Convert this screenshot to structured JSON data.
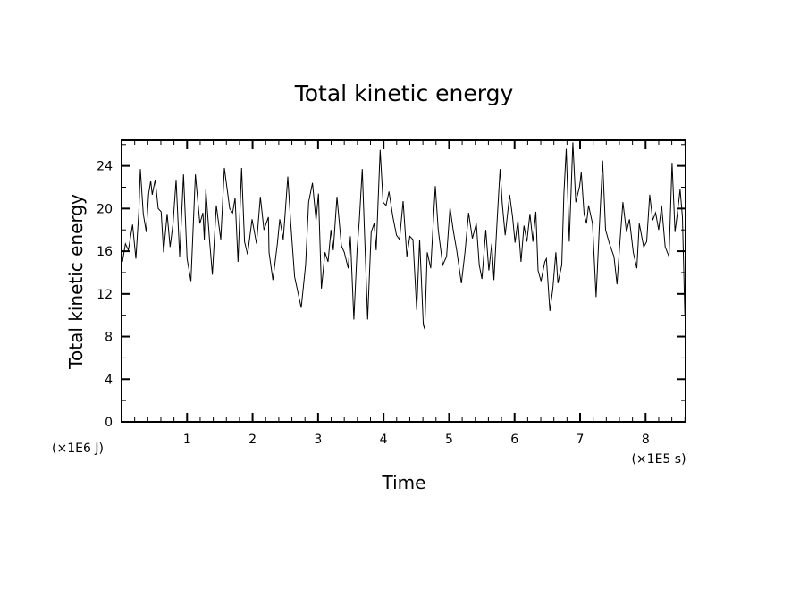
{
  "chart_data": {
    "type": "line",
    "title": "Total kinetic energy",
    "xlabel": "Time",
    "ylabel": "Total kinetic energy",
    "x_unit_label": "(×1E5 s)",
    "y_unit_label": "(×1E6 J)",
    "xlim": [
      0,
      8.61
    ],
    "ylim": [
      0,
      26.4
    ],
    "xticks": [
      1,
      2,
      3,
      4,
      5,
      6,
      7,
      8
    ],
    "xtick_labels": [
      "1",
      "2",
      "3",
      "4",
      "5",
      "6",
      "7",
      "8"
    ],
    "x_minor_step": 0.2,
    "yticks": [
      0,
      4,
      8,
      12,
      16,
      20,
      24
    ],
    "ytick_labels": [
      "0",
      "4",
      "8",
      "12",
      "16",
      "20",
      "24"
    ],
    "y_minor_step": 2,
    "grid": false,
    "legend": "none",
    "color": "#000000",
    "series": [
      {
        "name": "Total kinetic energy",
        "x": [
          0.014,
          0.059,
          0.104,
          0.168,
          0.218,
          0.263,
          0.287,
          0.332,
          0.377,
          0.413,
          0.445,
          0.468,
          0.513,
          0.559,
          0.604,
          0.641,
          0.696,
          0.741,
          0.786,
          0.832,
          0.887,
          0.945,
          1.0,
          1.059,
          1.127,
          1.195,
          1.242,
          1.263,
          1.287,
          1.341,
          1.386,
          1.446,
          1.514,
          1.569,
          1.651,
          1.696,
          1.733,
          1.778,
          1.832,
          1.877,
          1.924,
          1.992,
          2.06,
          2.119,
          2.173,
          2.242,
          2.251,
          2.31,
          2.378,
          2.415,
          2.469,
          2.538,
          2.583,
          2.641,
          2.742,
          2.81,
          2.856,
          2.914,
          2.969,
          3.006,
          3.051,
          3.105,
          3.152,
          3.197,
          3.233,
          3.288,
          3.356,
          3.401,
          3.46,
          3.493,
          3.547,
          3.596,
          3.629,
          3.674,
          3.719,
          3.756,
          3.811,
          3.856,
          3.888,
          3.947,
          3.992,
          4.038,
          4.083,
          4.142,
          4.197,
          4.243,
          4.298,
          4.356,
          4.401,
          4.448,
          4.506,
          4.551,
          4.606,
          4.629,
          4.666,
          4.72,
          4.789,
          4.834,
          4.902,
          4.961,
          5.015,
          5.062,
          5.116,
          5.188,
          5.243,
          5.298,
          5.356,
          5.416,
          5.461,
          5.502,
          5.561,
          5.607,
          5.652,
          5.684,
          5.734,
          5.779,
          5.812,
          5.857,
          5.925,
          5.97,
          6.007,
          6.052,
          6.098,
          6.143,
          6.188,
          6.235,
          6.28,
          6.325,
          6.358,
          6.403,
          6.461,
          6.485,
          6.539,
          6.584,
          6.63,
          6.662,
          6.72,
          6.753,
          6.789,
          6.835,
          6.89,
          6.935,
          6.993,
          7.017,
          7.061,
          7.098,
          7.13,
          7.19,
          7.244,
          7.29,
          7.344,
          7.389,
          7.449,
          7.517,
          7.563,
          7.608,
          7.654,
          7.708,
          7.753,
          7.812,
          7.867,
          7.903,
          7.971,
          8.017,
          8.063,
          8.108,
          8.153,
          8.199,
          8.244,
          8.299,
          8.358,
          8.404,
          8.449,
          8.494,
          8.527,
          8.562,
          8.599
        ],
        "y": [
          15.0,
          16.7,
          16.1,
          18.5,
          15.3,
          19.7,
          23.7,
          19.5,
          17.8,
          21.4,
          22.6,
          21.3,
          22.7,
          20.0,
          19.7,
          15.9,
          19.5,
          16.4,
          18.6,
          22.7,
          15.5,
          23.2,
          15.3,
          13.2,
          23.2,
          18.6,
          19.6,
          17.1,
          21.8,
          17.2,
          13.8,
          20.3,
          17.1,
          23.8,
          20.0,
          19.6,
          21.0,
          15.0,
          23.8,
          16.9,
          15.7,
          19.0,
          16.7,
          21.1,
          18.0,
          19.2,
          15.9,
          13.3,
          16.7,
          19.0,
          17.1,
          23.0,
          18.6,
          13.6,
          10.7,
          14.7,
          20.6,
          22.4,
          18.9,
          21.4,
          12.5,
          15.9,
          15.0,
          18.0,
          16.1,
          21.1,
          16.5,
          15.9,
          14.4,
          17.4,
          9.6,
          16.1,
          18.9,
          23.7,
          15.9,
          9.6,
          17.8,
          18.6,
          16.1,
          25.5,
          20.6,
          20.3,
          21.6,
          19.2,
          17.5,
          17.1,
          20.7,
          15.5,
          17.4,
          17.1,
          10.5,
          17.1,
          9.1,
          8.7,
          15.9,
          14.4,
          22.1,
          18.0,
          14.7,
          15.5,
          20.1,
          18.0,
          16.1,
          13.0,
          15.9,
          19.6,
          17.2,
          18.6,
          14.7,
          13.4,
          18.0,
          14.2,
          16.7,
          13.3,
          18.9,
          23.7,
          20.5,
          17.5,
          21.3,
          19.2,
          16.8,
          18.9,
          15.0,
          18.4,
          16.9,
          19.5,
          16.9,
          19.7,
          14.2,
          13.2,
          15.0,
          15.3,
          10.4,
          12.5,
          15.9,
          13.0,
          14.7,
          21.4,
          25.6,
          16.9,
          26.2,
          20.6,
          22.1,
          23.4,
          19.5,
          18.6,
          20.3,
          18.6,
          11.7,
          17.8,
          24.5,
          18.0,
          16.7,
          15.5,
          12.9,
          16.9,
          20.6,
          17.8,
          19.0,
          15.9,
          14.4,
          18.6,
          16.4,
          16.9,
          21.3,
          18.9,
          19.6,
          18.0,
          20.3,
          16.4,
          15.5,
          24.3,
          17.8,
          20.0,
          21.8,
          19.2,
          10.0
        ]
      }
    ]
  }
}
